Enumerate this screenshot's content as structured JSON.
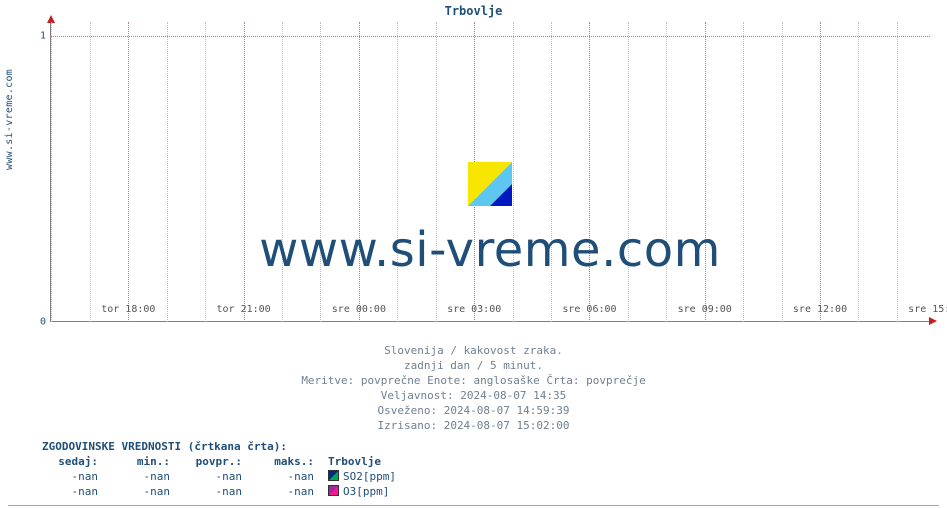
{
  "title": "Trbovlje",
  "site_label": "www.si-vreme.com",
  "watermark": "www.si-vreme.com",
  "chart": {
    "type": "line",
    "background_color": "#ffffff",
    "grid_color_minor": "#d9b8b8",
    "grid_color_major": "#c07878",
    "axis_color": "#808080",
    "arrow_color": "#c02020",
    "title_color": "#1f4e79",
    "title_fontsize": 12,
    "watermark_color": "#1f4e79",
    "watermark_fontsize": 48,
    "ylim": [
      0,
      1.05
    ],
    "yticks": [
      {
        "v": 0,
        "label": "0"
      },
      {
        "v": 1,
        "label": "1"
      }
    ],
    "xticks_major": [
      {
        "pos": 0.089,
        "label": "tor 18:00"
      },
      {
        "pos": 0.22,
        "label": "tor 21:00"
      },
      {
        "pos": 0.351,
        "label": "sre 00:00"
      },
      {
        "pos": 0.482,
        "label": "sre 03:00"
      },
      {
        "pos": 0.613,
        "label": "sre 06:00"
      },
      {
        "pos": 0.744,
        "label": "sre 09:00"
      },
      {
        "pos": 0.875,
        "label": "sre 12:00"
      },
      {
        "pos": 1.006,
        "label": "sre 15:00"
      }
    ],
    "minor_per_major": 3,
    "series": [
      {
        "name": "SO2[ppm]",
        "swatch_colors": [
          "#002b7f",
          "#00a651"
        ],
        "values": []
      },
      {
        "name": "O3[ppm]",
        "swatch_colors": [
          "#9b2d9b",
          "#ff1493"
        ],
        "values": []
      }
    ]
  },
  "footer_lines": [
    "Slovenija / kakovost zraka.",
    "zadnji dan / 5 minut.",
    "Meritve: povprečne  Enote: anglosaške  Črta: povprečje",
    "Veljavnost: 2024-08-07 14:35",
    "Osveženo: 2024-08-07 14:59:39",
    "Izrisano: 2024-08-07 15:02:00"
  ],
  "history": {
    "title": "ZGODOVINSKE VREDNOSTI (črtkana črta):",
    "headers": [
      "sedaj:",
      "min.:",
      "povpr.:",
      "maks.:"
    ],
    "station": "Trbovlje",
    "rows": [
      {
        "sedaj": "-nan",
        "min": "-nan",
        "povpr": "-nan",
        "maks": "-nan",
        "series_index": 0
      },
      {
        "sedaj": "-nan",
        "min": "-nan",
        "povpr": "-nan",
        "maks": "-nan",
        "series_index": 1
      }
    ]
  }
}
